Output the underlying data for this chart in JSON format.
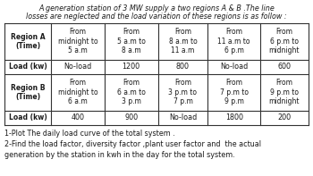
{
  "title_line1": "A generation station of 3 MW supply a two regions A & B .The line",
  "title_line2": "losses are neglected and the load variation of these regions is as follow :",
  "region_a_label": "Region A\n(Time)",
  "region_a_cols": [
    "From\nmidnight to\n5 a.m",
    "From\n5 a.m to\n8 a.m",
    "From\n8 a.m to\n11 a.m",
    "From\n11 a.m to\n6 p.m",
    "From\n6 p.m to\nmidnight"
  ],
  "region_a_loads": [
    "No-load",
    "1200",
    "800",
    "No-load",
    "600"
  ],
  "region_b_label": "Region B\n(Time)",
  "region_b_cols": [
    "From\nmidnight to\n6 a.m",
    "From\n6 a.m to\n3 p.m",
    "From\n3 p.m to\n7 p.m",
    "From\n7 p.m to\n9 p.m",
    "From\n9 p.m to\nmidnight"
  ],
  "region_b_loads": [
    "400",
    "900",
    "No-load",
    "1800",
    "200"
  ],
  "load_a_label": "Load (kw)",
  "load_b_label": "Load (kw)",
  "footer_line1": "1-Plot The daily load curve of the total system .",
  "footer_line2": "2-Find the load factor, diversity factor ,plant user factor and  the actual",
  "footer_line3": "generation by the station in kwh in the day for the total system.",
  "bg_color": "#ffffff",
  "cell_bg": "#ffffff",
  "text_color": "#1a1a1a",
  "border_color": "#333333",
  "title_fontsize": 5.8,
  "header_fontsize": 5.5,
  "data_fontsize": 5.8,
  "footer_fontsize": 5.8
}
